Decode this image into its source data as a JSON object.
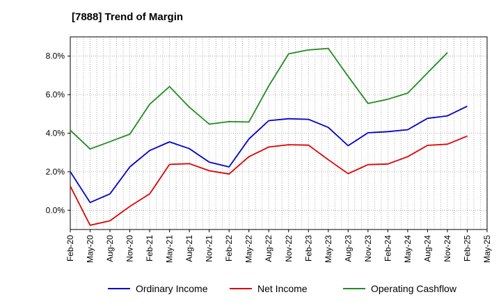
{
  "chart_data": {
    "type": "line",
    "title": "[7888]  Trend of Margin",
    "xlabel": "",
    "ylabel": "",
    "ylim": [
      -1.0,
      9.0
    ],
    "yticks": [
      0.0,
      2.0,
      4.0,
      6.0,
      8.0
    ],
    "ytick_labels": [
      "0.0%",
      "2.0%",
      "4.0%",
      "6.0%",
      "8.0%"
    ],
    "grid": true,
    "legend_position": "bottom",
    "x": [
      "Feb-20",
      "May-20",
      "Aug-20",
      "Nov-20",
      "Feb-21",
      "May-21",
      "Aug-21",
      "Nov-21",
      "Feb-22",
      "May-22",
      "Aug-22",
      "Nov-22",
      "Feb-23",
      "May-23",
      "Aug-23",
      "Nov-23",
      "Feb-24",
      "May-24",
      "Aug-24",
      "Nov-24",
      "Feb-25",
      "May-25"
    ],
    "series": [
      {
        "name": "Ordinary Income",
        "color": "#0000cc",
        "values": [
          2.0,
          0.4,
          0.85,
          2.25,
          3.1,
          3.55,
          3.2,
          2.5,
          2.25,
          3.7,
          4.65,
          4.75,
          4.72,
          4.3,
          3.35,
          4.02,
          4.08,
          4.18,
          4.77,
          4.9,
          5.4,
          null
        ]
      },
      {
        "name": "Net Income",
        "color": "#dd0000",
        "values": [
          1.25,
          -0.78,
          -0.55,
          0.2,
          0.85,
          2.38,
          2.42,
          2.05,
          1.88,
          2.78,
          3.28,
          3.4,
          3.38,
          2.62,
          1.9,
          2.37,
          2.4,
          2.78,
          3.37,
          3.43,
          3.85,
          null
        ]
      },
      {
        "name": "Operating Cashflow",
        "color": "#228b22",
        "values": [
          4.15,
          3.18,
          3.56,
          3.95,
          5.5,
          6.42,
          5.35,
          4.47,
          4.6,
          4.58,
          6.45,
          8.12,
          8.32,
          8.4,
          6.95,
          5.54,
          5.76,
          6.08,
          7.13,
          8.18,
          null,
          null
        ]
      }
    ]
  }
}
